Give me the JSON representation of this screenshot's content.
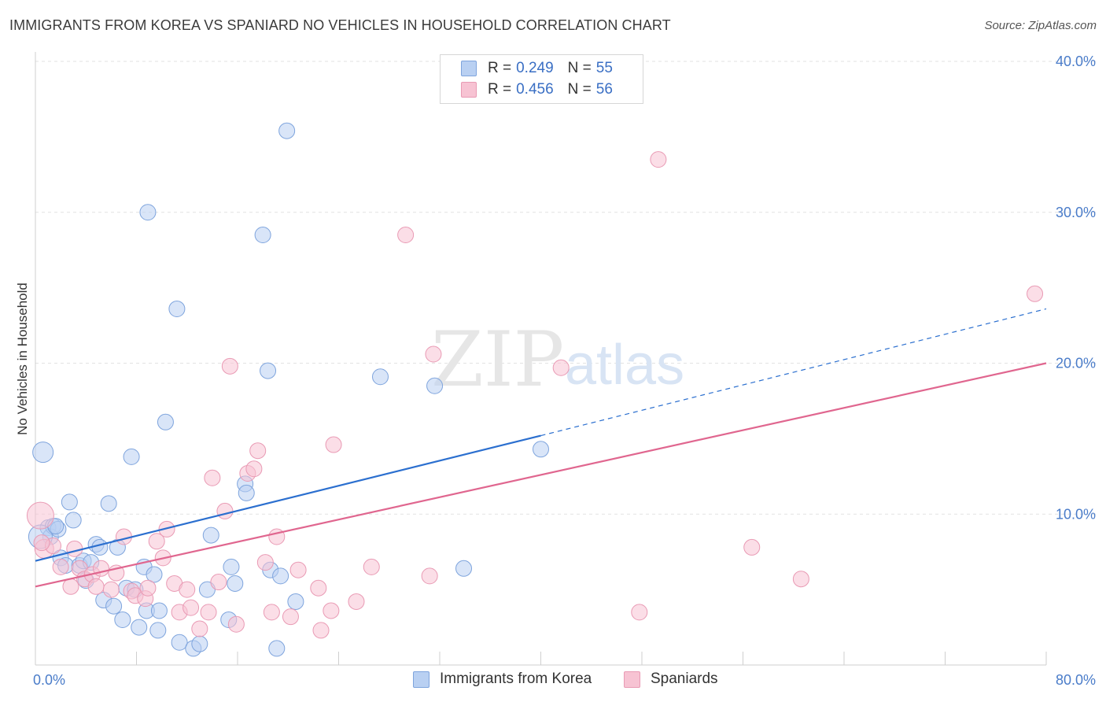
{
  "title": "IMMIGRANTS FROM KOREA VS SPANIARD NO VEHICLES IN HOUSEHOLD CORRELATION CHART",
  "source": "Source: ZipAtlas.com",
  "watermark": {
    "zip": "ZIP",
    "atlas": "atlas"
  },
  "legend": {
    "rows": [
      {
        "r_label": "R =",
        "r_value": "0.249",
        "n_label": "N =",
        "n_value": "55"
      },
      {
        "r_label": "R =",
        "r_value": "0.456",
        "n_label": "N =",
        "n_value": "56"
      }
    ]
  },
  "colors": {
    "korea_fill": "#b9d0f2",
    "korea_stroke": "#7ea4dd",
    "korea_line": "#2b6fcf",
    "spain_fill": "#f7c3d3",
    "spain_stroke": "#e99ab4",
    "spain_line": "#e0668f",
    "grid": "#e2e2e2",
    "tick_label": "#4a7cc9"
  },
  "chart_data": {
    "type": "scatter",
    "title": "IMMIGRANTS FROM KOREA VS SPANIARD NO VEHICLES IN HOUSEHOLD CORRELATION CHART",
    "xlabel": "",
    "ylabel": "No Vehicles in Household",
    "xlim": [
      0,
      80
    ],
    "ylim": [
      0,
      40
    ],
    "x_tick_labels": [
      "0.0%",
      "80.0%"
    ],
    "y_ticks": [
      10,
      20,
      30,
      40
    ],
    "y_tick_labels": [
      "10.0%",
      "20.0%",
      "30.0%",
      "40.0%"
    ],
    "grid": true,
    "legend_position": "top-center",
    "series": [
      {
        "name": "Immigrants from Korea",
        "r": 0.249,
        "n": 55,
        "trend": {
          "x0": 0,
          "y0": 6.9,
          "x1": 40,
          "y1": 15.2,
          "dashed_to_x": 80,
          "dashed_to_y": 23.6
        },
        "points": [
          [
            0.6,
            14.1
          ],
          [
            1.0,
            9.1
          ],
          [
            1.2,
            8.5
          ],
          [
            1.4,
            9.2
          ],
          [
            1.8,
            9.0
          ],
          [
            2.0,
            7.1
          ],
          [
            2.4,
            6.6
          ],
          [
            2.7,
            10.8
          ],
          [
            3.0,
            9.6
          ],
          [
            3.5,
            6.6
          ],
          [
            3.8,
            6.9
          ],
          [
            4.0,
            5.6
          ],
          [
            4.4,
            6.8
          ],
          [
            4.8,
            8.0
          ],
          [
            5.1,
            7.8
          ],
          [
            5.4,
            4.3
          ],
          [
            5.8,
            10.7
          ],
          [
            6.2,
            3.9
          ],
          [
            6.5,
            7.8
          ],
          [
            6.9,
            3.0
          ],
          [
            7.2,
            5.1
          ],
          [
            7.6,
            13.8
          ],
          [
            7.9,
            5.0
          ],
          [
            8.2,
            2.5
          ],
          [
            8.6,
            6.5
          ],
          [
            8.8,
            3.6
          ],
          [
            8.9,
            30.0
          ],
          [
            9.4,
            6.0
          ],
          [
            9.8,
            3.6
          ],
          [
            9.7,
            2.3
          ],
          [
            10.3,
            16.1
          ],
          [
            11.2,
            23.6
          ],
          [
            11.4,
            1.5
          ],
          [
            12.5,
            1.1
          ],
          [
            13.0,
            1.4
          ],
          [
            13.6,
            5.0
          ],
          [
            13.9,
            8.6
          ],
          [
            15.3,
            3.0
          ],
          [
            15.5,
            6.5
          ],
          [
            15.8,
            5.4
          ],
          [
            16.6,
            12.0
          ],
          [
            16.7,
            11.4
          ],
          [
            18.0,
            28.5
          ],
          [
            18.4,
            19.5
          ],
          [
            18.6,
            6.3
          ],
          [
            19.1,
            1.1
          ],
          [
            19.4,
            5.9
          ],
          [
            19.9,
            35.4
          ],
          [
            20.6,
            4.2
          ],
          [
            27.3,
            19.1
          ],
          [
            31.6,
            18.5
          ],
          [
            33.9,
            6.4
          ],
          [
            40.0,
            14.3
          ],
          [
            0.4,
            8.5
          ],
          [
            1.6,
            9.2
          ]
        ],
        "point_sizes": [
          26,
          20,
          20,
          20,
          20,
          20,
          20,
          20,
          20,
          20,
          20,
          20,
          20,
          20,
          20,
          20,
          20,
          20,
          20,
          20,
          20,
          20,
          20,
          20,
          20,
          20,
          20,
          20,
          20,
          20,
          20,
          20,
          20,
          20,
          20,
          20,
          20,
          20,
          20,
          20,
          20,
          20,
          20,
          20,
          20,
          20,
          20,
          20,
          20,
          20,
          20,
          20,
          20,
          30,
          20
        ]
      },
      {
        "name": "Spaniards",
        "r": 0.456,
        "n": 56,
        "trend": {
          "x0": 0,
          "y0": 5.2,
          "x1": 80,
          "y1": 20.0
        },
        "points": [
          [
            0.4,
            9.9
          ],
          [
            0.7,
            7.7
          ],
          [
            1.4,
            7.9
          ],
          [
            2.0,
            6.5
          ],
          [
            2.8,
            5.2
          ],
          [
            3.1,
            7.7
          ],
          [
            3.5,
            6.4
          ],
          [
            3.9,
            5.7
          ],
          [
            4.5,
            6.0
          ],
          [
            4.8,
            5.2
          ],
          [
            5.2,
            6.4
          ],
          [
            6.0,
            5.0
          ],
          [
            6.4,
            6.1
          ],
          [
            7.0,
            8.5
          ],
          [
            7.6,
            4.9
          ],
          [
            7.9,
            4.6
          ],
          [
            8.7,
            4.4
          ],
          [
            8.9,
            5.1
          ],
          [
            9.6,
            8.2
          ],
          [
            10.1,
            7.1
          ],
          [
            10.4,
            9.0
          ],
          [
            11.0,
            5.4
          ],
          [
            11.4,
            3.5
          ],
          [
            12.0,
            5.0
          ],
          [
            12.3,
            3.8
          ],
          [
            13.0,
            2.4
          ],
          [
            13.7,
            3.5
          ],
          [
            14.0,
            12.4
          ],
          [
            14.5,
            5.5
          ],
          [
            15.0,
            10.2
          ],
          [
            15.4,
            19.8
          ],
          [
            15.9,
            2.7
          ],
          [
            16.8,
            12.7
          ],
          [
            17.3,
            13.0
          ],
          [
            17.6,
            14.2
          ],
          [
            18.2,
            6.8
          ],
          [
            18.7,
            3.5
          ],
          [
            19.1,
            8.5
          ],
          [
            20.2,
            3.2
          ],
          [
            20.8,
            6.3
          ],
          [
            22.4,
            5.1
          ],
          [
            22.6,
            2.3
          ],
          [
            23.4,
            3.6
          ],
          [
            23.6,
            14.6
          ],
          [
            25.4,
            4.2
          ],
          [
            26.6,
            6.5
          ],
          [
            29.3,
            28.5
          ],
          [
            31.2,
            5.9
          ],
          [
            31.5,
            20.6
          ],
          [
            41.6,
            19.7
          ],
          [
            47.8,
            3.5
          ],
          [
            49.3,
            33.5
          ],
          [
            56.7,
            7.8
          ],
          [
            60.6,
            5.7
          ],
          [
            79.1,
            24.6
          ],
          [
            0.5,
            8.1
          ]
        ],
        "point_sizes": [
          34,
          24,
          20,
          20,
          20,
          20,
          20,
          20,
          20,
          20,
          20,
          20,
          20,
          20,
          20,
          20,
          20,
          20,
          20,
          20,
          20,
          20,
          20,
          20,
          20,
          20,
          20,
          20,
          20,
          20,
          20,
          20,
          20,
          20,
          20,
          20,
          20,
          20,
          20,
          20,
          20,
          20,
          20,
          20,
          20,
          20,
          20,
          20,
          20,
          20,
          20,
          20,
          20,
          20,
          20,
          20
        ]
      }
    ]
  },
  "bottom_legend": [
    {
      "label": "Immigrants from Korea"
    },
    {
      "label": "Spaniards"
    }
  ]
}
